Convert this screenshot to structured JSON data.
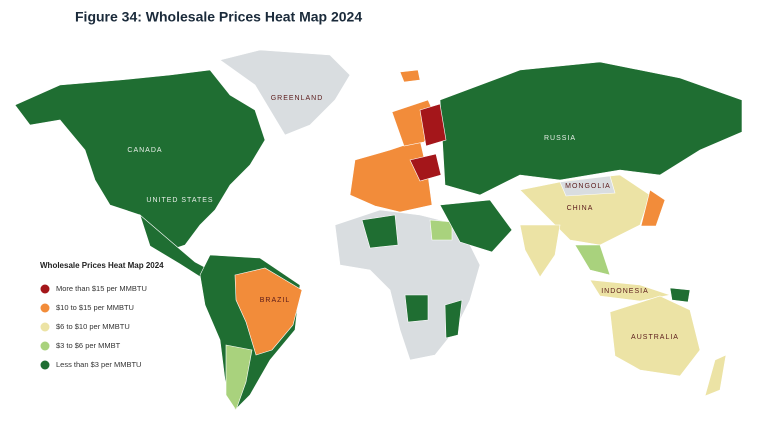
{
  "title": "Figure 34: Wholesale Prices Heat Map 2024",
  "legend": {
    "title": "Wholesale Prices Heat Map 2024",
    "items": [
      {
        "label": "More than $15 per MMBTU",
        "color": "#a4161a"
      },
      {
        "label": "$10 to $15 per MMBTU",
        "color": "#f28c3a"
      },
      {
        "label": "$6 to $10 per MMBTU",
        "color": "#ece3a5"
      },
      {
        "label": "$3 to $6 per MMBT",
        "color": "#a9d27d"
      },
      {
        "label": "Less than $3 per MMBTU",
        "color": "#1f6e32"
      }
    ]
  },
  "labels": [
    "GREENLAND",
    "CANADA",
    "UNITED STATES",
    "RUSSIA",
    "MONGOLIA",
    "CHINA",
    "BRAZIL",
    "INDONESIA",
    "AUSTRALIA"
  ]
}
